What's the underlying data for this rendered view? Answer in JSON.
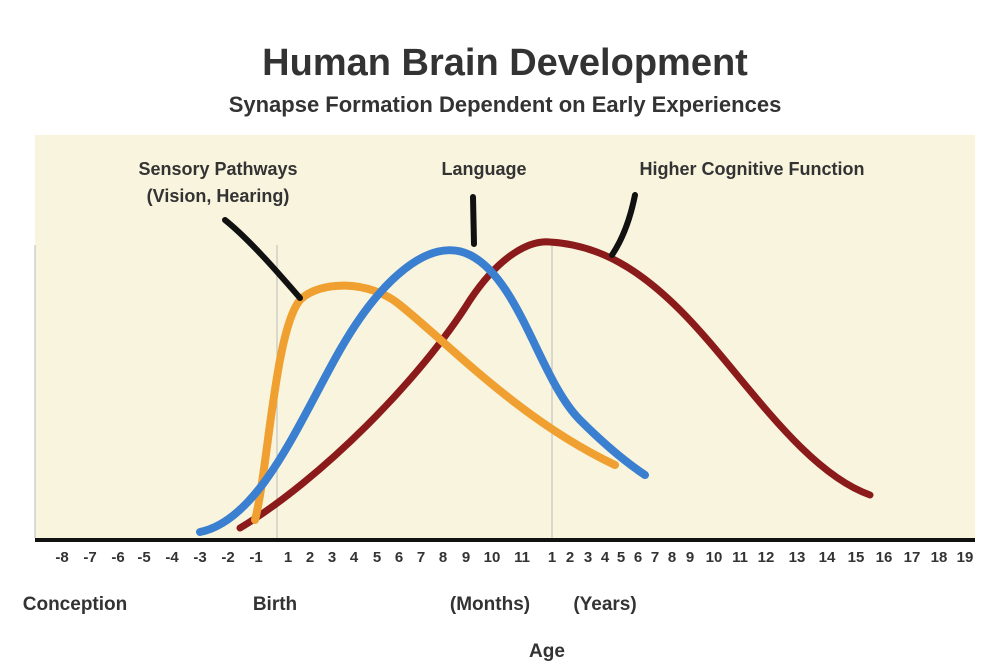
{
  "header": {
    "title": "Human Brain Development",
    "subtitle": "Synapse Formation Dependent on Early Experiences"
  },
  "curves": [
    {
      "label_lines": [
        "Sensory Pathways",
        "(Vision, Hearing)"
      ]
    },
    {
      "label_lines": [
        "Language"
      ]
    },
    {
      "label_lines": [
        "Higher Cognitive Function"
      ]
    }
  ],
  "axis": {
    "ticks": [
      "-8",
      "-7",
      "-6",
      "-5",
      "-4",
      "-3",
      "-2",
      "-1",
      "1",
      "2",
      "3",
      "4",
      "5",
      "6",
      "7",
      "8",
      "9",
      "10",
      "11",
      "1",
      "2",
      "3",
      "4",
      "5",
      "6",
      "7",
      "8",
      "9",
      "10",
      "11",
      "12",
      "13",
      "14",
      "15",
      "16",
      "17",
      "18",
      "19"
    ],
    "landmarks": [
      "Conception",
      "Birth",
      "(Months)",
      "(Years)"
    ],
    "title": "Age"
  }
}
